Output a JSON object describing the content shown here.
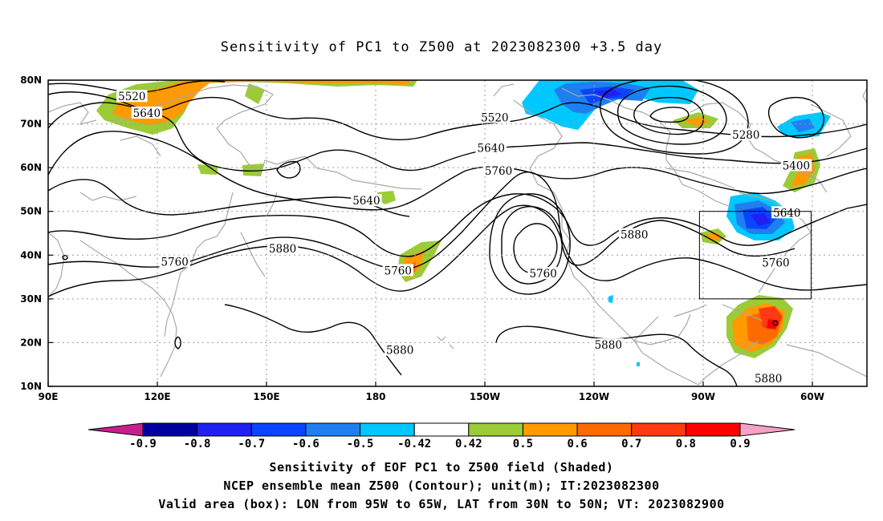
{
  "title": "Sensitivity of PC1 to Z500 at 2023082300 +3.5 day",
  "lat_labels": [
    "80N",
    "70N",
    "60N",
    "50N",
    "40N",
    "30N",
    "20N",
    "10N"
  ],
  "lon_labels": [
    "90E",
    "120E",
    "150E",
    "180",
    "150W",
    "120W",
    "90W",
    "60W"
  ],
  "contour_labels": [
    {
      "text": "5520",
      "lon": 112.5,
      "lat": 76.3
    },
    {
      "text": "5640",
      "lon": 116.5,
      "lat": 72.5
    },
    {
      "text": "5520",
      "lon": 210,
      "lat": 71.5
    },
    {
      "text": "5280",
      "lon": 277.5,
      "lat": 67.5
    },
    {
      "text": "5640",
      "lon": 209,
      "lat": 64.5
    },
    {
      "text": "5760",
      "lon": 211,
      "lat": 59.3
    },
    {
      "text": "5400",
      "lon": 291,
      "lat": 60.5
    },
    {
      "text": "5640",
      "lon": 175.5,
      "lat": 52.5
    },
    {
      "text": "5640",
      "lon": 288.5,
      "lat": 49.7
    },
    {
      "text": "5880",
      "lon": 247.5,
      "lat": 44.7
    },
    {
      "text": "5880",
      "lon": 153,
      "lat": 41.5
    },
    {
      "text": "5760",
      "lon": 124,
      "lat": 38.5
    },
    {
      "text": "5760",
      "lon": 285.5,
      "lat": 38.3
    },
    {
      "text": "5760",
      "lon": 184,
      "lat": 36.5
    },
    {
      "text": "5760",
      "lon": 223,
      "lat": 35.8
    },
    {
      "text": "5880",
      "lon": 240.5,
      "lat": 19.5
    },
    {
      "text": "5880",
      "lon": 184.5,
      "lat": 18.3
    },
    {
      "text": "5880",
      "lon": 283.5,
      "lat": 11.8
    }
  ],
  "contour_levels_m": [
    5280,
    5400,
    5520,
    5640,
    5760,
    5880
  ],
  "box": {
    "lon_west": 265,
    "lon_east": 295,
    "lat_south": 30,
    "lat_north": 50
  },
  "colorbar": {
    "labels": [
      "-0.9",
      "-0.8",
      "-0.7",
      "-0.6",
      "-0.5",
      "-0.42",
      "0.42",
      "0.5",
      "0.6",
      "0.7",
      "0.8",
      "0.9"
    ],
    "colors": [
      "#0000a0",
      "#2020f0",
      "#0a44ff",
      "#1f7ff0",
      "#00c8ff",
      "#ffffff",
      "#9ccb38",
      "#ff9a00",
      "#ff6a00",
      "#ff3a10",
      "#ff0000"
    ],
    "low_arrow_color": "#c81e8c",
    "high_arrow_color": "#f7a0c8"
  },
  "caption_lines": [
    "Sensitivity of EOF PC1 to Z500 field (Shaded)",
    "NCEP ensemble mean Z500 (Contour); unit(m); IT:2023082300",
    "Valid area (box): LON from 95W to 65W, LAT from 30N to 50N; VT: 2023082900"
  ]
}
